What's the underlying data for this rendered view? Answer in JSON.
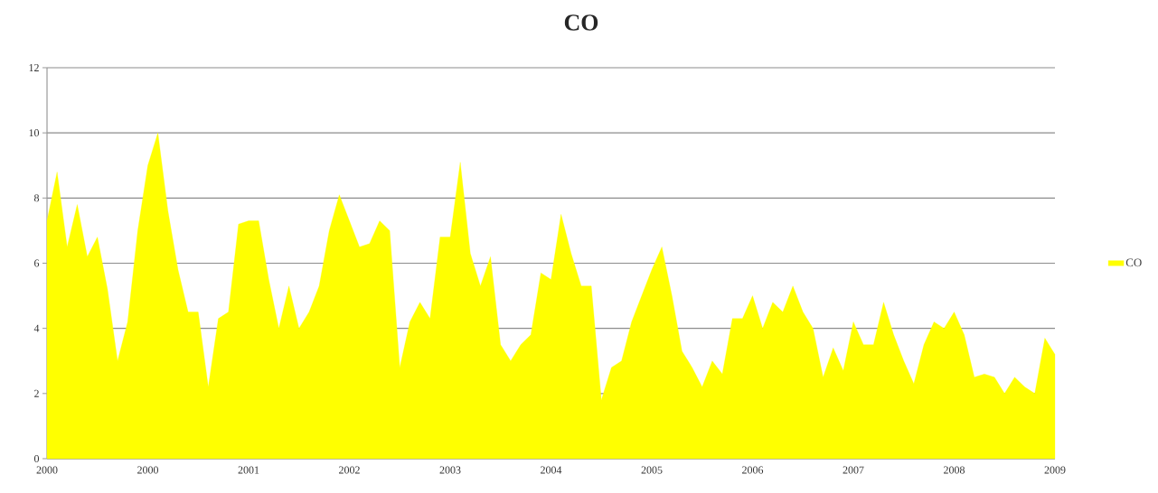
{
  "chart_data": {
    "type": "area",
    "title": "CO",
    "categories": [
      "2000",
      null,
      null,
      null,
      null,
      null,
      null,
      null,
      null,
      null,
      "2000",
      null,
      null,
      null,
      null,
      null,
      null,
      null,
      null,
      null,
      "2001",
      null,
      null,
      null,
      null,
      null,
      null,
      null,
      null,
      null,
      "2002",
      null,
      null,
      null,
      null,
      null,
      null,
      null,
      null,
      null,
      "2003",
      null,
      null,
      null,
      null,
      null,
      null,
      null,
      null,
      null,
      "2004",
      null,
      null,
      null,
      null,
      null,
      null,
      null,
      null,
      null,
      "2005",
      null,
      null,
      null,
      null,
      null,
      null,
      null,
      null,
      null,
      "2006",
      null,
      null,
      null,
      null,
      null,
      null,
      null,
      null,
      null,
      "2007",
      null,
      null,
      null,
      null,
      null,
      null,
      null,
      null,
      null,
      "2008",
      null,
      null,
      null,
      null,
      null,
      null,
      null,
      null,
      null,
      "2009"
    ],
    "series": [
      {
        "name": "CO",
        "color": "#ffff00",
        "values": [
          7.3,
          8.8,
          6.5,
          7.8,
          6.2,
          6.8,
          5.2,
          3.0,
          4.2,
          7.0,
          9.0,
          10.0,
          7.6,
          5.8,
          4.5,
          4.5,
          2.2,
          4.3,
          4.5,
          7.2,
          7.3,
          7.3,
          5.5,
          4.0,
          5.3,
          4.0,
          4.5,
          5.3,
          7.0,
          8.1,
          7.3,
          6.5,
          6.6,
          7.3,
          7.0,
          2.8,
          4.2,
          4.8,
          4.3,
          6.8,
          6.8,
          9.1,
          6.3,
          5.3,
          6.2,
          3.5,
          3.0,
          3.5,
          3.8,
          5.7,
          5.5,
          7.5,
          6.3,
          5.3,
          5.3,
          1.8,
          2.8,
          3.0,
          4.2,
          5.0,
          5.8,
          6.5,
          5.0,
          3.3,
          2.8,
          2.2,
          3.0,
          2.6,
          4.3,
          4.3,
          5.0,
          4.0,
          4.8,
          4.5,
          5.3,
          4.5,
          4.0,
          2.5,
          3.4,
          2.7,
          4.2,
          3.5,
          3.5,
          4.8,
          3.8,
          3.0,
          2.3,
          3.5,
          4.2,
          4.0,
          4.5,
          3.8,
          2.5,
          2.6,
          2.5,
          2.0,
          2.5,
          2.2,
          2.0,
          3.7,
          3.2
        ]
      }
    ],
    "ylim": [
      0,
      12
    ],
    "yticks": [
      0,
      2,
      4,
      6,
      8,
      10,
      12
    ],
    "grid": "y",
    "legend": "right"
  }
}
